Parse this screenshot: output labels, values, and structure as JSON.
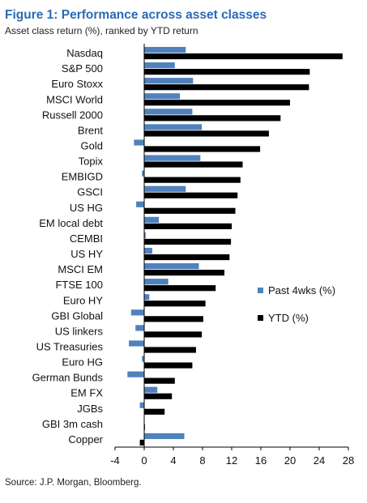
{
  "title": "Figure 1: Performance across asset classes",
  "subtitle": "Asset class return (%), ranked by YTD return",
  "source": "Source: J.P. Morgan, Bloomberg.",
  "colors": {
    "title": "#2a6bb5",
    "past_4wks": "#4f81bd",
    "ytd": "#000000"
  },
  "chart_data": {
    "type": "bar",
    "orientation": "horizontal",
    "categories": [
      "Nasdaq",
      "S&P 500",
      "Euro Stoxx",
      "MSCI World",
      "Russell 2000",
      "Brent",
      "Gold",
      "Topix",
      "EMBIGD",
      "GSCI",
      "US HG",
      "EM local debt",
      "CEMBI",
      "US HY",
      "MSCI EM",
      "FTSE 100",
      "Euro HY",
      "GBI Global",
      "US linkers",
      "US Treasuries",
      "Euro HG",
      "German Bunds",
      "EM FX",
      "JGBs",
      "GBI 3m cash",
      "Copper"
    ],
    "series": [
      {
        "name": "Past 4wks (%)",
        "values": [
          5.7,
          4.2,
          6.7,
          4.9,
          6.6,
          7.9,
          -1.4,
          7.7,
          -0.3,
          5.7,
          -1.1,
          2.0,
          0.2,
          1.1,
          7.5,
          3.3,
          0.7,
          -1.8,
          -1.2,
          -2.1,
          -0.3,
          -2.3,
          1.8,
          -0.6,
          0.0,
          5.5
        ]
      },
      {
        "name": "YTD (%)",
        "values": [
          27.2,
          22.7,
          22.6,
          20.0,
          18.7,
          17.1,
          15.9,
          13.5,
          13.2,
          12.8,
          12.5,
          12.0,
          11.9,
          11.7,
          11.0,
          9.8,
          8.4,
          8.1,
          7.9,
          7.1,
          6.6,
          4.2,
          3.8,
          2.8,
          0.1,
          -0.6
        ]
      }
    ],
    "xticks": [
      "-4",
      "0",
      "4",
      "8",
      "12",
      "16",
      "20",
      "24",
      "28"
    ],
    "xlim": [
      -4,
      28
    ],
    "xlabel": "",
    "ylabel": "",
    "grid": false,
    "legend_position": "right"
  }
}
